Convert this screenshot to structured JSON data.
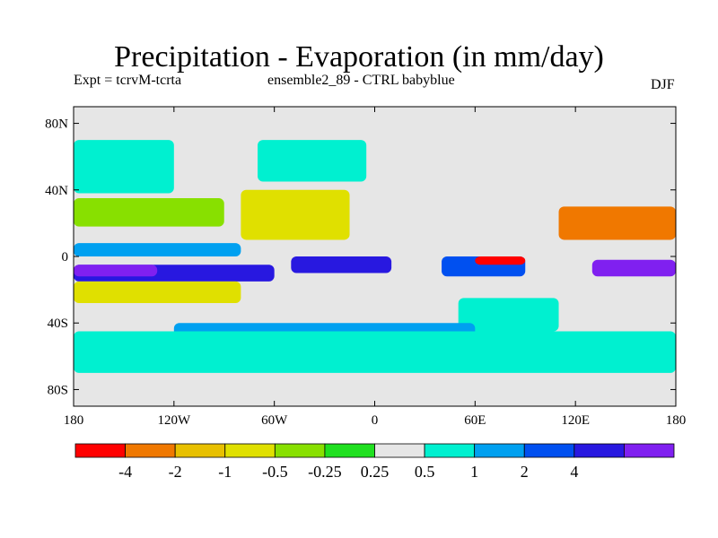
{
  "chart_data": {
    "type": "heatmap",
    "title": "Precipitation - Evaporation (in mm/day)",
    "subtitle_left": "Expt = tcrvM-tcrta",
    "subtitle_center": "ensemble2_89 - CTRL babyblue",
    "subtitle_right": "DJF",
    "xlim": [
      -180,
      180
    ],
    "ylim": [
      -90,
      90
    ],
    "x_ticks": [
      {
        "value": -180,
        "label": "180"
      },
      {
        "value": -120,
        "label": "120W"
      },
      {
        "value": -60,
        "label": "60W"
      },
      {
        "value": 0,
        "label": "0"
      },
      {
        "value": 60,
        "label": "60E"
      },
      {
        "value": 120,
        "label": "120E"
      },
      {
        "value": 180,
        "label": "180"
      }
    ],
    "y_ticks": [
      {
        "value": 80,
        "label": "80N"
      },
      {
        "value": 40,
        "label": "40N"
      },
      {
        "value": 0,
        "label": "0"
      },
      {
        "value": -40,
        "label": "40S"
      },
      {
        "value": -80,
        "label": "80S"
      }
    ],
    "colorbar": {
      "colors": [
        "#ff0000",
        "#f07800",
        "#e8c000",
        "#e0e000",
        "#88e000",
        "#20e020",
        "#e6e6e6",
        "#00f0d0",
        "#00a0f0",
        "#0050f0",
        "#2818e0",
        "#8020f0"
      ],
      "labels": [
        "-4",
        "-2",
        "-1",
        "-0.5",
        "-0.25",
        "0.25",
        "0.5",
        "1",
        "2",
        "4"
      ]
    },
    "regions": [
      {
        "name": "itcz-pacific-band",
        "lon": [
          -180,
          -80
        ],
        "lat": [
          0,
          8
        ],
        "color": "#00a0f0"
      },
      {
        "name": "north-pacific-blue",
        "lon": [
          -170,
          -125
        ],
        "lat": [
          45,
          65
        ],
        "color": "#0050f0"
      },
      {
        "name": "north-pacific-cyan",
        "lon": [
          -180,
          -120
        ],
        "lat": [
          38,
          70
        ],
        "color": "#00f0d0"
      },
      {
        "name": "north-atlantic-blue",
        "lon": [
          -60,
          -10
        ],
        "lat": [
          50,
          65
        ],
        "color": "#0050f0"
      },
      {
        "name": "north-atlantic-cyan",
        "lon": [
          -70,
          -5
        ],
        "lat": [
          45,
          70
        ],
        "color": "#00f0d0"
      },
      {
        "name": "subtropical-north-atlantic",
        "lon": [
          -80,
          -15
        ],
        "lat": [
          10,
          40
        ],
        "color": "#e0e000"
      },
      {
        "name": "subtropical-north-pacific",
        "lon": [
          -180,
          -90
        ],
        "lat": [
          18,
          35
        ],
        "color": "#88e000"
      },
      {
        "name": "south-pacific-blue",
        "lon": [
          -180,
          -60
        ],
        "lat": [
          -15,
          -5
        ],
        "color": "#2818e0"
      },
      {
        "name": "south-pacific-violet",
        "lon": [
          -180,
          -130
        ],
        "lat": [
          -12,
          -5
        ],
        "color": "#8020f0"
      },
      {
        "name": "south-pacific-yellow",
        "lon": [
          -180,
          -80
        ],
        "lat": [
          -28,
          -15
        ],
        "color": "#e0e000"
      },
      {
        "name": "tropical-atlantic-blue",
        "lon": [
          -50,
          10
        ],
        "lat": [
          -10,
          0
        ],
        "color": "#2818e0"
      },
      {
        "name": "indian-ocean-blue",
        "lon": [
          40,
          90
        ],
        "lat": [
          -12,
          0
        ],
        "color": "#0050f0"
      },
      {
        "name": "indian-ocean-red",
        "lon": [
          60,
          90
        ],
        "lat": [
          -5,
          0
        ],
        "color": "#ff0000"
      },
      {
        "name": "west-pacific-orange",
        "lon": [
          110,
          180
        ],
        "lat": [
          10,
          30
        ],
        "color": "#f07800"
      },
      {
        "name": "west-pacific-violet",
        "lon": [
          130,
          180
        ],
        "lat": [
          -12,
          -2
        ],
        "color": "#8020f0"
      },
      {
        "name": "south-indian-cyan",
        "lon": [
          50,
          110
        ],
        "lat": [
          -45,
          -25
        ],
        "color": "#00f0d0"
      },
      {
        "name": "southern-ocean-blue",
        "lon": [
          -120,
          60
        ],
        "lat": [
          -50,
          -40
        ],
        "color": "#00a0f0"
      },
      {
        "name": "southern-ocean-cyan",
        "lon": [
          -180,
          180
        ],
        "lat": [
          -70,
          -45
        ],
        "color": "#00f0d0"
      }
    ]
  }
}
